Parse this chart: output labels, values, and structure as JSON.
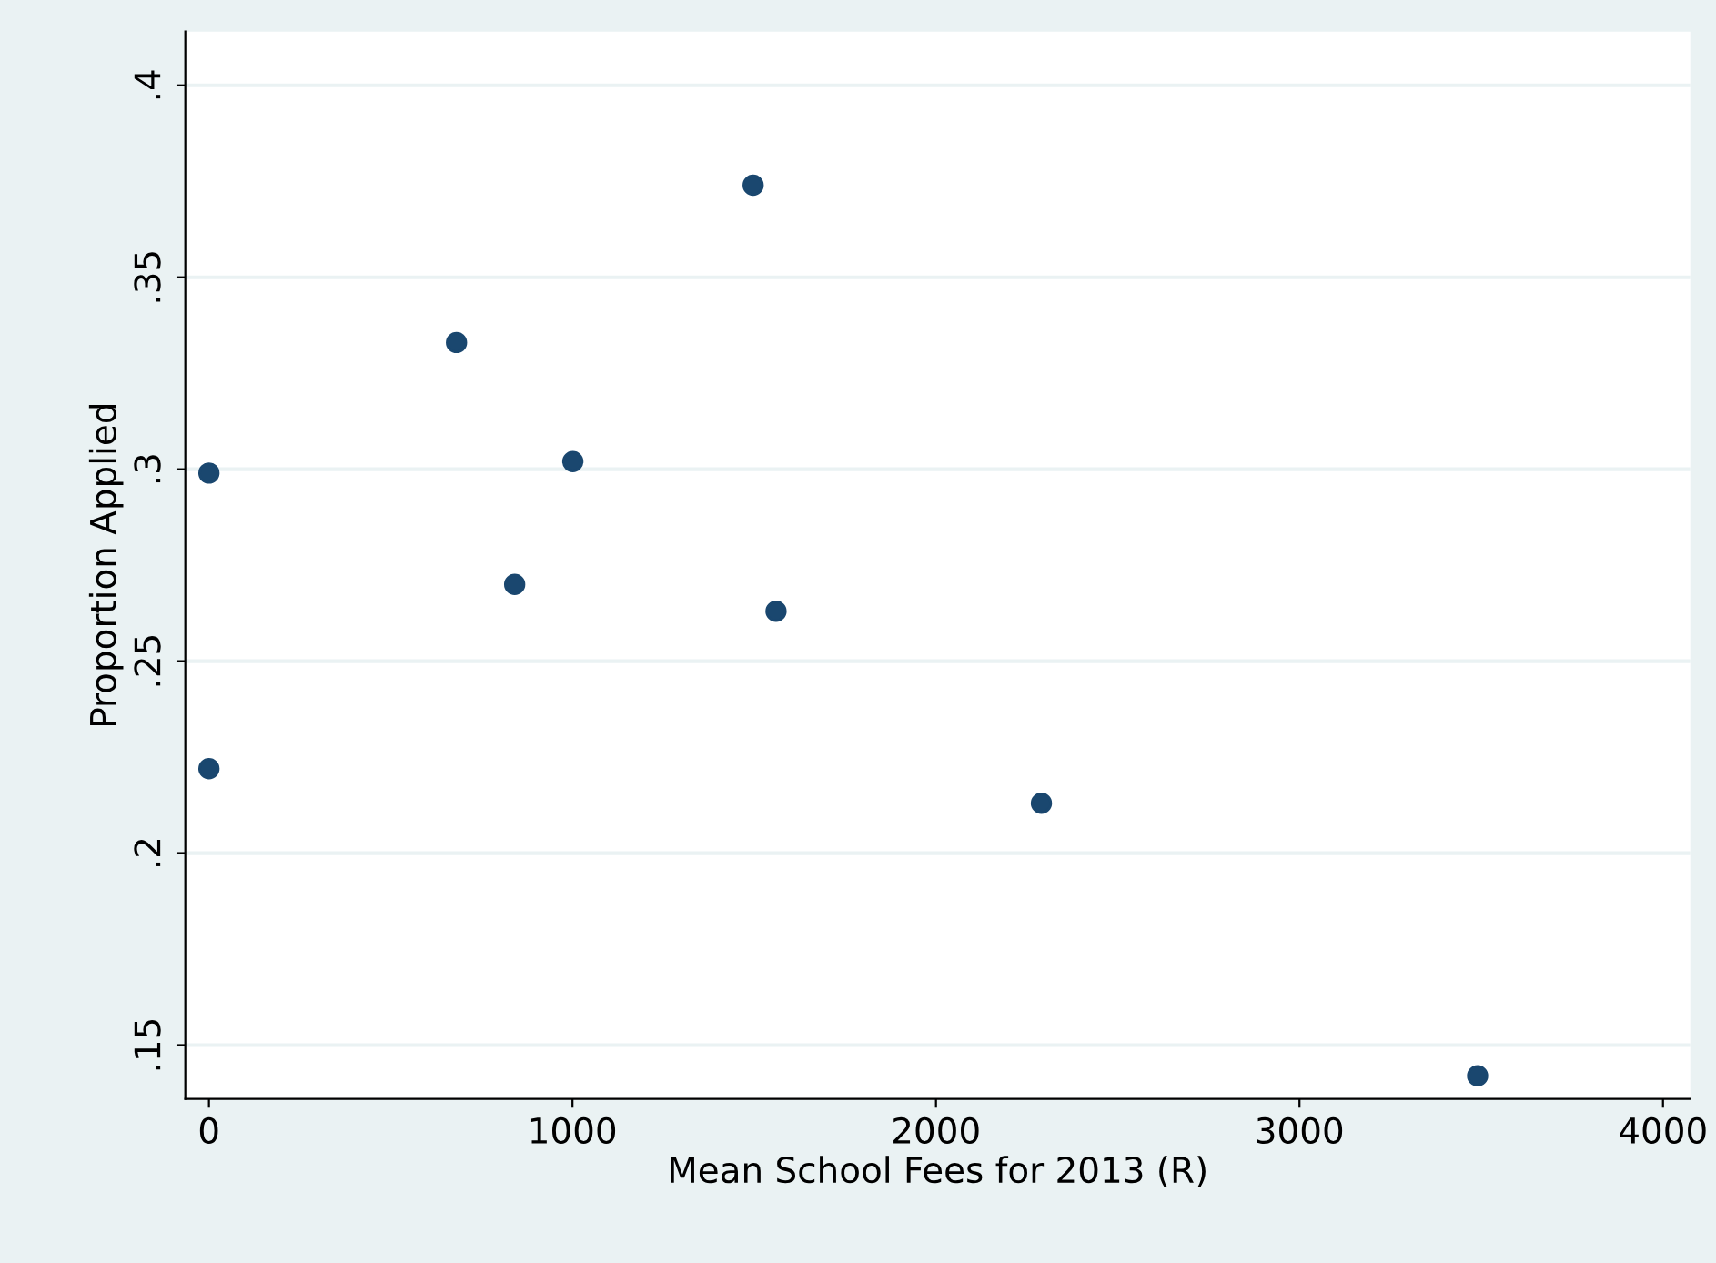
{
  "chart_data": {
    "type": "scatter",
    "xlabel": "Mean School Fees for 2013 (R)",
    "ylabel": "Proportion Applied",
    "x": [
      0,
      0,
      681,
      841,
      1001,
      1497,
      1560,
      2290,
      3490
    ],
    "series": [
      {
        "color": "#1a476f",
        "values": [
          0.299,
          0.222,
          0.333,
          0.27,
          0.302,
          0.374,
          0.263,
          0.213,
          0.142
        ]
      }
    ],
    "xlim": [
      -65,
      4075
    ],
    "ylim": [
      0.136,
      0.414
    ],
    "xticks": [
      0,
      1000,
      2000,
      3000,
      4000
    ],
    "yticks": [
      {
        "value": 0.15,
        "label": ".15"
      },
      {
        "value": 0.2,
        "label": ".2"
      },
      {
        "value": 0.25,
        "label": ".25"
      },
      {
        "value": 0.3,
        "label": ".3"
      },
      {
        "value": 0.35,
        "label": ".35"
      },
      {
        "value": 0.4,
        "label": ".4"
      }
    ],
    "grid": "y",
    "marker": "circle",
    "legend": false
  }
}
